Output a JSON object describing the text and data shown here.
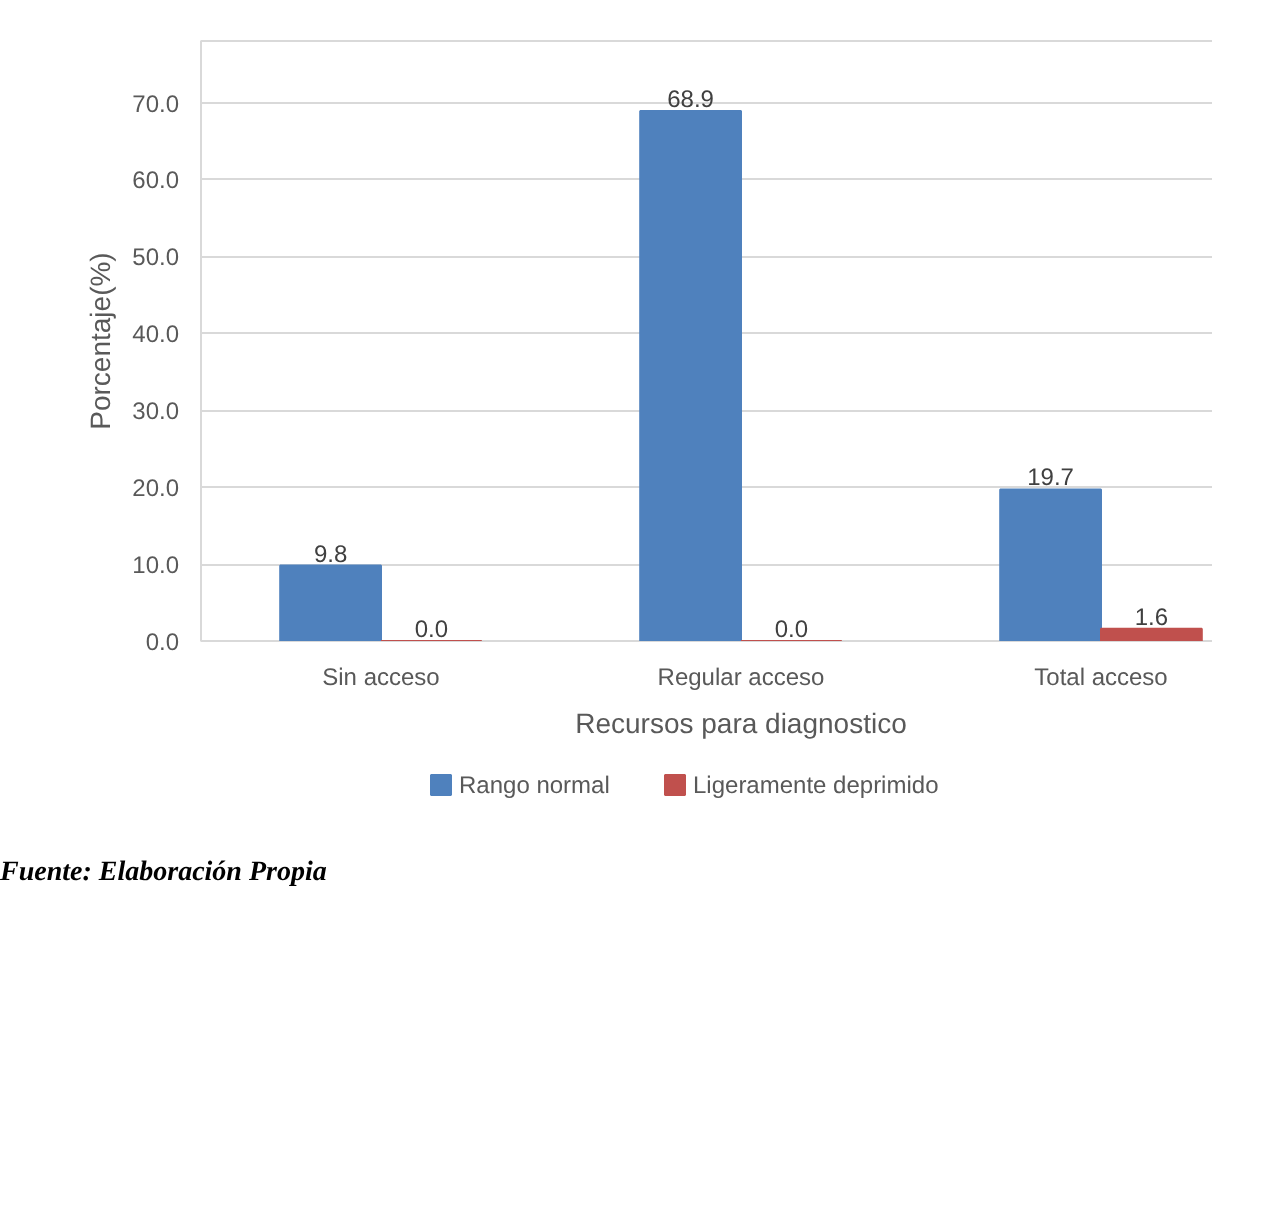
{
  "chart_data": {
    "type": "bar",
    "xlabel": "Recursos para diagnostico",
    "ylabel": "Porcentaje(%)",
    "categories": [
      "Sin acceso",
      "Regular acceso",
      "Total acceso"
    ],
    "series": [
      {
        "name": "Rango normal",
        "color": "#4f81bd",
        "values": [
          9.8,
          68.9,
          19.7
        ],
        "value_labels": [
          "9.8",
          "68.9",
          "19.7"
        ]
      },
      {
        "name": "Ligeramente deprimido",
        "color": "#c0504d",
        "values": [
          0.0,
          0.0,
          1.6
        ],
        "value_labels": [
          "0.0",
          "0.0",
          "1.6"
        ]
      }
    ],
    "ylim": [
      0,
      78
    ],
    "yticks": [
      {
        "value": 0,
        "label": "0.0"
      },
      {
        "value": 10,
        "label": "10.0"
      },
      {
        "value": 20,
        "label": "20.0"
      },
      {
        "value": 30,
        "label": "30.0"
      },
      {
        "value": 40,
        "label": "40.0"
      },
      {
        "value": 50,
        "label": "50.0"
      },
      {
        "value": 60,
        "label": "60.0"
      },
      {
        "value": 70,
        "label": "70.0"
      }
    ],
    "grid": "y",
    "legend": "bottom",
    "annotations": [
      "Fuente: Elaboración Propia"
    ]
  }
}
